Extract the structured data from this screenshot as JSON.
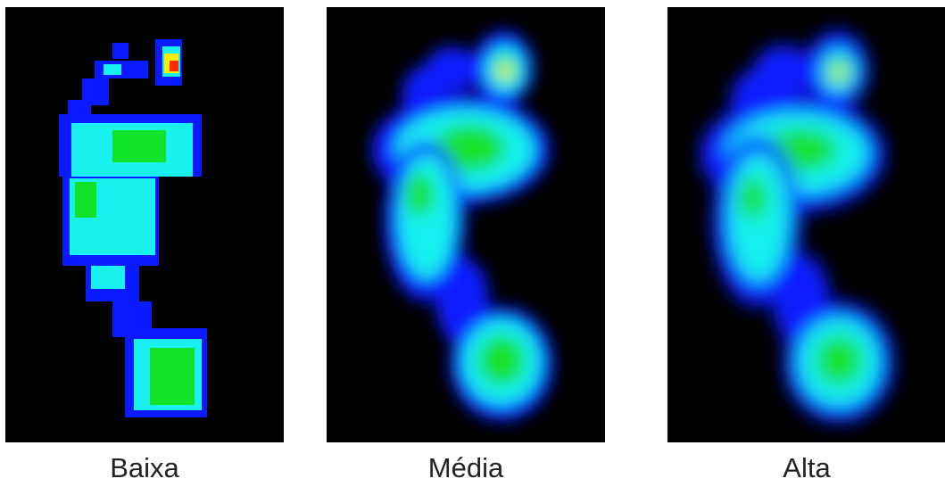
{
  "panels": [
    {
      "id": "baixa",
      "label": "Baixa",
      "resolution": "low"
    },
    {
      "id": "media",
      "label": "Média",
      "resolution": "medium"
    },
    {
      "id": "alta",
      "label": "Alta",
      "resolution": "high"
    }
  ],
  "colors": {
    "background": "#000000",
    "blue": "#0a1cff",
    "cyan": "#19f0f0",
    "green": "#12e22a",
    "yellow": "#ffee00",
    "red": "#ff2a00"
  }
}
